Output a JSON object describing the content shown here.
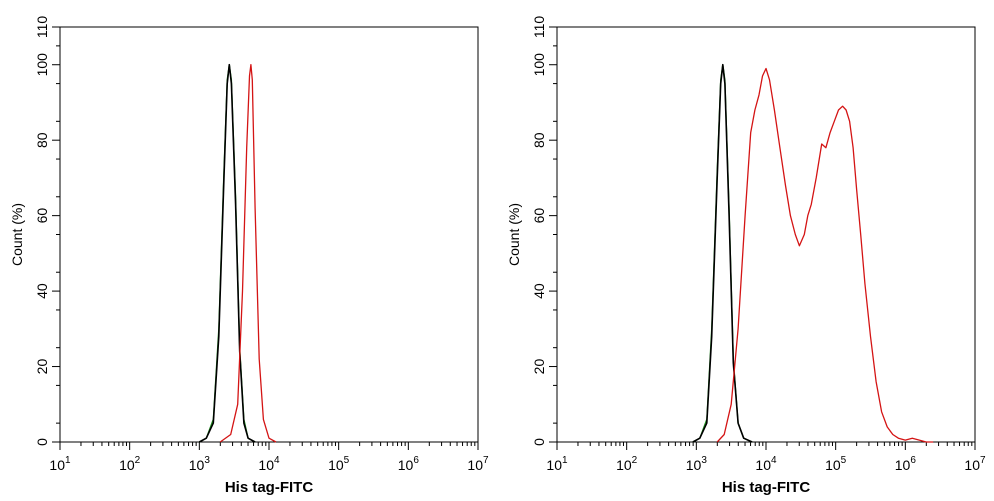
{
  "chart_data": [
    {
      "type": "line",
      "title": "",
      "xlabel": "His tag-FITC",
      "ylabel": "Count  (%)",
      "xscale": "log",
      "xlim_log10": [
        1,
        7
      ],
      "ylim": [
        0,
        110
      ],
      "x_ticks": [
        {
          "base": "10",
          "exp": "1"
        },
        {
          "base": "10",
          "exp": "2"
        },
        {
          "base": "10",
          "exp": "3"
        },
        {
          "base": "10",
          "exp": "4"
        },
        {
          "base": "10",
          "exp": "5"
        },
        {
          "base": "10",
          "exp": "6"
        },
        {
          "base": "10",
          "exp": "7"
        }
      ],
      "y_ticks": [
        "0",
        "20",
        "40",
        "60",
        "80",
        "100",
        "110"
      ],
      "series": [
        {
          "name": "green",
          "color": "#1a8a1a",
          "x_log10": [
            3.0,
            3.1,
            3.2,
            3.28,
            3.35,
            3.4,
            3.43,
            3.46,
            3.52,
            3.58,
            3.64,
            3.7,
            3.8
          ],
          "y": [
            0,
            1,
            6,
            30,
            70,
            96,
            100,
            96,
            65,
            25,
            6,
            1,
            0
          ]
        },
        {
          "name": "black",
          "color": "#000000",
          "x_log10": [
            3.0,
            3.1,
            3.2,
            3.28,
            3.35,
            3.4,
            3.43,
            3.46,
            3.52,
            3.58,
            3.64,
            3.7,
            3.8
          ],
          "y": [
            0,
            1,
            5,
            28,
            68,
            95,
            100,
            95,
            63,
            24,
            5,
            1,
            0
          ]
        },
        {
          "name": "red",
          "color": "#d41414",
          "x_log10": [
            3.3,
            3.45,
            3.55,
            3.62,
            3.68,
            3.72,
            3.74,
            3.76,
            3.8,
            3.86,
            3.92,
            4.0,
            4.1
          ],
          "y": [
            0,
            2,
            10,
            40,
            78,
            97,
            100,
            96,
            62,
            22,
            6,
            1,
            0
          ]
        }
      ]
    },
    {
      "type": "line",
      "title": "",
      "xlabel": "His tag-FITC",
      "ylabel": "Count  (%)",
      "xscale": "log",
      "xlim_log10": [
        1,
        7
      ],
      "ylim": [
        0,
        110
      ],
      "x_ticks": [
        {
          "base": "10",
          "exp": "1"
        },
        {
          "base": "10",
          "exp": "2"
        },
        {
          "base": "10",
          "exp": "3"
        },
        {
          "base": "10",
          "exp": "4"
        },
        {
          "base": "10",
          "exp": "5"
        },
        {
          "base": "10",
          "exp": "6"
        },
        {
          "base": "10",
          "exp": "7"
        }
      ],
      "y_ticks": [
        "0",
        "20",
        "40",
        "60",
        "80",
        "100",
        "110"
      ],
      "series": [
        {
          "name": "green",
          "color": "#1a8a1a",
          "x_log10": [
            2.95,
            3.05,
            3.15,
            3.22,
            3.3,
            3.35,
            3.38,
            3.41,
            3.47,
            3.53,
            3.6,
            3.68,
            3.8
          ],
          "y": [
            0,
            1,
            6,
            30,
            72,
            96,
            100,
            96,
            62,
            22,
            5,
            1,
            0
          ]
        },
        {
          "name": "black",
          "color": "#000000",
          "x_log10": [
            2.95,
            3.05,
            3.15,
            3.22,
            3.3,
            3.35,
            3.38,
            3.41,
            3.47,
            3.53,
            3.6,
            3.68,
            3.8
          ],
          "y": [
            0,
            1,
            5,
            28,
            70,
            95,
            100,
            95,
            60,
            21,
            5,
            1,
            0
          ]
        },
        {
          "name": "red",
          "color": "#d41414",
          "x_log10": [
            3.3,
            3.4,
            3.5,
            3.6,
            3.7,
            3.78,
            3.84,
            3.9,
            3.95,
            4.0,
            4.05,
            4.12,
            4.2,
            4.28,
            4.35,
            4.42,
            4.48,
            4.55,
            4.6,
            4.65,
            4.72,
            4.8,
            4.86,
            4.92,
            4.98,
            5.04,
            5.1,
            5.15,
            5.2,
            5.25,
            5.3,
            5.36,
            5.42,
            5.5,
            5.58,
            5.66,
            5.74,
            5.82,
            5.9,
            6.0,
            6.1,
            6.2,
            6.3,
            6.4
          ],
          "y": [
            0,
            2,
            10,
            30,
            60,
            82,
            88,
            92,
            97,
            99,
            96,
            88,
            78,
            68,
            60,
            55,
            52,
            55,
            60,
            63,
            70,
            79,
            78,
            82,
            85,
            88,
            89,
            88,
            85,
            78,
            67,
            55,
            42,
            28,
            16,
            8,
            4,
            2,
            1,
            0.5,
            1,
            0.5,
            0,
            0
          ]
        }
      ]
    }
  ]
}
